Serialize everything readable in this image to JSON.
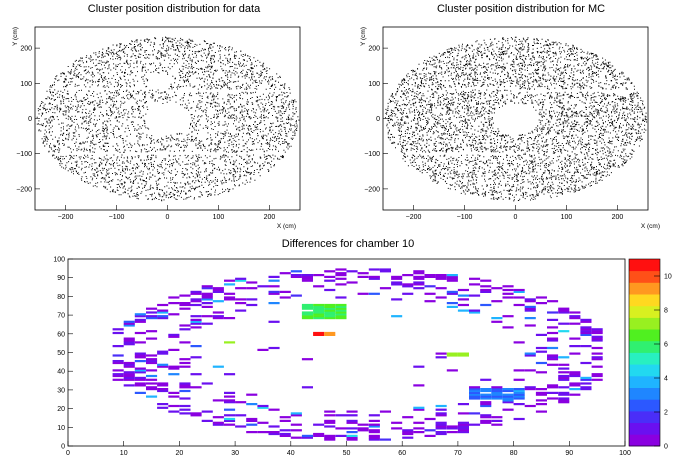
{
  "chart_data": [
    {
      "type": "scatter",
      "title": "Cluster position distribution for data",
      "xlabel": "X (cm)",
      "ylabel": "Y (cm)",
      "xlim": [
        -260,
        260
      ],
      "ylim": [
        -260,
        260
      ],
      "xticks": [
        -200,
        -100,
        0,
        100,
        200
      ],
      "yticks": [
        -200,
        -100,
        0,
        100,
        200
      ],
      "density": "sparse",
      "outer_radius": 245,
      "hole_radius": 45,
      "gaps": [
        {
          "x": [
            -260,
            0
          ],
          "y": [
            83,
            90
          ]
        },
        {
          "x": [
            -260,
            0
          ],
          "y": [
            -102,
            -95
          ]
        },
        {
          "x": [
            0,
            260
          ],
          "y": [
            76,
            84
          ]
        },
        {
          "x": [
            0,
            260
          ],
          "y": [
            -102,
            -95
          ]
        },
        {
          "x": [
            -40,
            0
          ],
          "y": [
            90,
            125
          ]
        }
      ]
    },
    {
      "type": "scatter",
      "title": "Cluster position distribution for MC",
      "xlabel": "X (cm)",
      "ylabel": "Y (cm)",
      "xlim": [
        -260,
        260
      ],
      "ylim": [
        -260,
        260
      ],
      "xticks": [
        -200,
        -100,
        0,
        100,
        200
      ],
      "yticks": [
        -200,
        -100,
        0,
        100,
        200
      ],
      "density": "dense",
      "outer_radius": 245,
      "hole_radius": 45,
      "gaps": [
        {
          "x": [
            -130,
            0
          ],
          "y": [
            83,
            90
          ]
        },
        {
          "x": [
            -215,
            0
          ],
          "y": [
            -102,
            -95
          ]
        },
        {
          "x": [
            0,
            260
          ],
          "y": [
            76,
            84
          ]
        },
        {
          "x": [
            90,
            130
          ],
          "y": [
            158,
            166
          ]
        }
      ]
    },
    {
      "type": "heatmap",
      "title": "Differences for chamber 10",
      "xlim": [
        0,
        100
      ],
      "ylim": [
        0,
        100
      ],
      "xticks": [
        0,
        10,
        20,
        30,
        40,
        50,
        60,
        70,
        80,
        90,
        100
      ],
      "yticks": [
        0,
        10,
        20,
        30,
        40,
        50,
        60,
        70,
        80,
        90,
        100
      ],
      "zlim": [
        0,
        11
      ],
      "zticks": [
        0,
        2,
        4,
        6,
        8,
        10
      ],
      "ring": {
        "center": [
          52,
          49
        ],
        "outer_radius_x": 45,
        "outer_radius_y": 46,
        "inner_radius_x": 30,
        "inner_radius_y": 30
      },
      "hot_spots": [
        {
          "x": [
            42,
            50
          ],
          "y": [
            68,
            76
          ],
          "z": 6
        },
        {
          "x": [
            73,
            82
          ],
          "y": [
            25,
            31
          ],
          "z": 3
        },
        {
          "x": [
            45,
            47
          ],
          "y": [
            59,
            61
          ],
          "z": 10
        },
        {
          "x": [
            69,
            71
          ],
          "y": [
            48,
            50
          ],
          "z": 7
        },
        {
          "x": [
            28,
            30
          ],
          "y": [
            55,
            57
          ],
          "z": 7
        }
      ]
    }
  ]
}
